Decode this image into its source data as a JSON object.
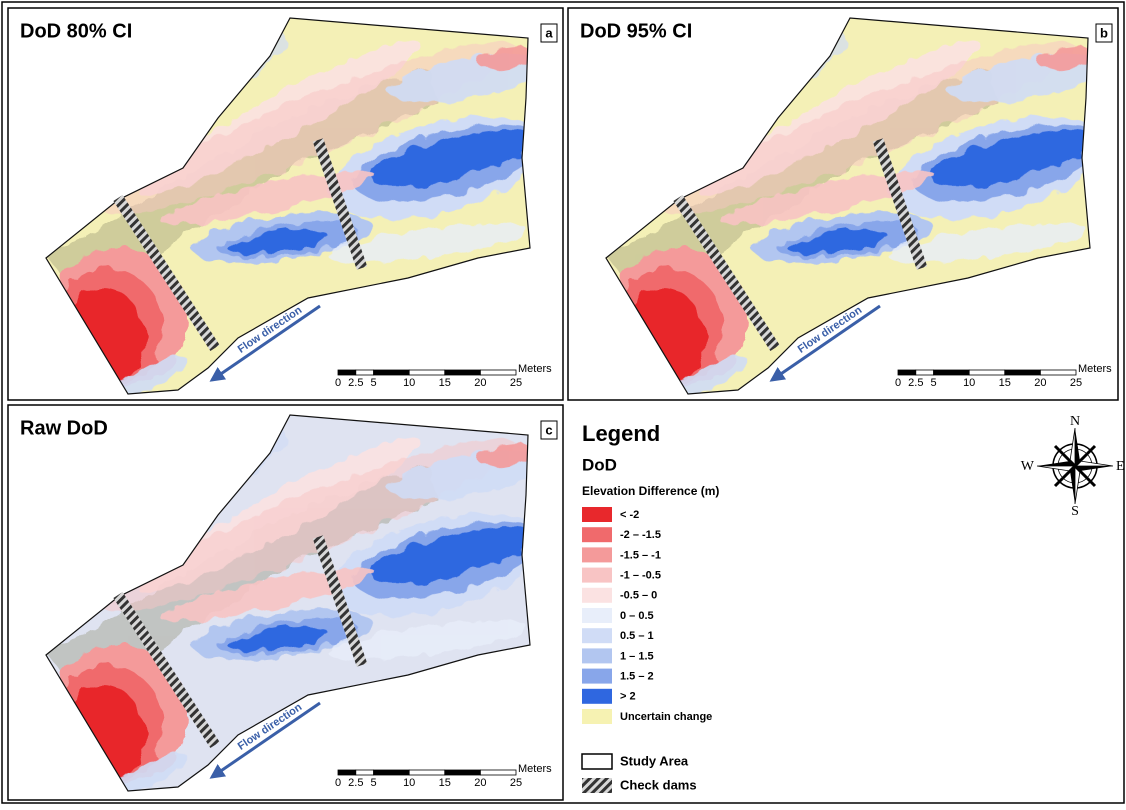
{
  "panels": [
    {
      "title": "DoD 80% CI",
      "letter": "a",
      "flow_label": "Flow direction",
      "background_color": "#f4f0b6",
      "scale": {
        "unit": "Meters",
        "ticks": [
          0,
          2.5,
          5,
          10,
          15,
          20,
          25
        ]
      }
    },
    {
      "title": "DoD 95% CI",
      "letter": "b",
      "flow_label": "Flow direction",
      "background_color": "#f4f0b6",
      "scale": {
        "unit": "Meters",
        "ticks": [
          0,
          2.5,
          5,
          10,
          15,
          20,
          25
        ]
      }
    },
    {
      "title": "Raw DoD",
      "letter": "c",
      "flow_label": "Flow direction",
      "background_color": "#dfe3f1",
      "scale": {
        "unit": "Meters",
        "ticks": [
          0,
          2.5,
          5,
          10,
          15,
          20,
          25
        ]
      }
    }
  ],
  "legend": {
    "title": "Legend",
    "subtitle": "DoD",
    "heading": "Elevation Difference (m)",
    "classes": [
      {
        "label": "< -2",
        "color": "#e8282c"
      },
      {
        "label": "-2 – -1.5",
        "color": "#f06a6c"
      },
      {
        "label": "-1.5 – -1",
        "color": "#f49a9a"
      },
      {
        "label": "-1 – -0.5",
        "color": "#f8c4c4"
      },
      {
        "label": "-0.5 – 0",
        "color": "#fbe2e2"
      },
      {
        "label": "0 – 0.5",
        "color": "#e8eefa"
      },
      {
        "label": "0.5 – 1",
        "color": "#d0dcf6"
      },
      {
        "label": "1 – 1.5",
        "color": "#b2c6f0"
      },
      {
        "label": "1.5 – 2",
        "color": "#88a6ea"
      },
      {
        "label": "> 2",
        "color": "#2f67e0"
      },
      {
        "label": "Uncertain change",
        "color": "#f6f2b2"
      }
    ],
    "study_area": "Study Area",
    "check_dams": "Check dams"
  },
  "compass": {
    "n": "N",
    "s": "S",
    "e": "E",
    "w": "W"
  }
}
